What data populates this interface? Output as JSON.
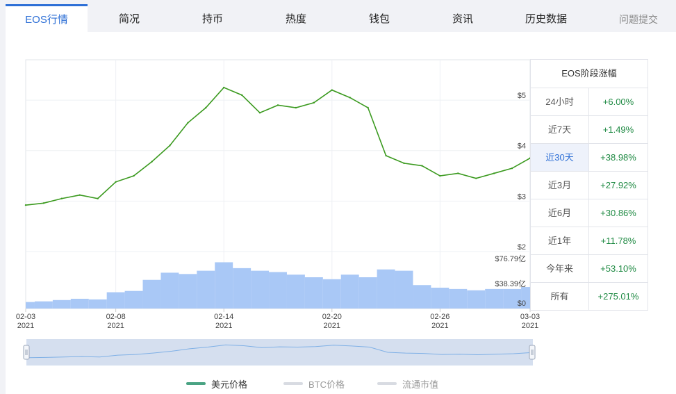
{
  "tabs": [
    {
      "label": "EOS行情",
      "active": true
    },
    {
      "label": "简况"
    },
    {
      "label": "持币"
    },
    {
      "label": "热度"
    },
    {
      "label": "钱包"
    },
    {
      "label": "资讯"
    },
    {
      "label": "历史数据"
    }
  ],
  "feedback_label": "问题提交",
  "performance": {
    "title": "EOS阶段涨幅",
    "rows": [
      {
        "period": "24小时",
        "change": "+6.00%"
      },
      {
        "period": "近7天",
        "change": "+1.49%"
      },
      {
        "period": "近30天",
        "change": "+38.98%",
        "active": true
      },
      {
        "period": "近3月",
        "change": "+27.92%"
      },
      {
        "period": "近6月",
        "change": "+30.86%"
      },
      {
        "period": "近1年",
        "change": "+11.78%"
      },
      {
        "period": "今年来",
        "change": "+53.10%"
      },
      {
        "period": "所有",
        "change": "+275.01%"
      }
    ]
  },
  "legend": [
    {
      "label": "美元价格",
      "color": "#4aa383",
      "active": true
    },
    {
      "label": "BTC价格",
      "color": "#d8dbe2",
      "active": false
    },
    {
      "label": "流通市值",
      "color": "#d8dbe2",
      "active": false
    }
  ],
  "colors": {
    "accent": "#2d6fd6",
    "price_line": "#3b9a1f",
    "volume_bar": "#a9c8f6",
    "positive": "#1f8a43"
  },
  "chart_data": {
    "type": "line",
    "series": [
      {
        "name": "美元价格",
        "x": [
          "02-03",
          "02-04",
          "02-05",
          "02-06",
          "02-07",
          "02-08",
          "02-09",
          "02-10",
          "02-11",
          "02-12",
          "02-13",
          "02-14",
          "02-15",
          "02-16",
          "02-17",
          "02-18",
          "02-19",
          "02-20",
          "02-21",
          "02-22",
          "02-23",
          "02-24",
          "02-25",
          "02-26",
          "02-27",
          "02-28",
          "03-01",
          "03-02",
          "03-03"
        ],
        "y": [
          2.92,
          2.96,
          3.05,
          3.12,
          3.05,
          3.38,
          3.5,
          3.78,
          4.1,
          4.55,
          4.85,
          5.25,
          5.1,
          4.75,
          4.9,
          4.85,
          4.95,
          5.2,
          5.05,
          4.85,
          3.9,
          3.75,
          3.7,
          3.5,
          3.55,
          3.45,
          3.55,
          3.65,
          3.85
        ]
      }
    ],
    "volume": {
      "name": "流通市值",
      "unit": "亿",
      "values": [
        10,
        11,
        13,
        15,
        14,
        25,
        27,
        44,
        55,
        53,
        58,
        71,
        62,
        58,
        56,
        52,
        48,
        45,
        52,
        48,
        60,
        58,
        36,
        32,
        30,
        28,
        30,
        30,
        33
      ]
    },
    "price_axis": {
      "ticks": [
        "$2",
        "$3",
        "$4",
        "$5"
      ],
      "ylim": [
        2,
        5.8
      ]
    },
    "volume_axis": {
      "ticks": [
        "$0",
        "$38.39亿",
        "$76.79亿"
      ],
      "ylim": [
        0,
        76.79
      ]
    },
    "x_ticks": [
      {
        "date": "02-03",
        "year": "2021"
      },
      {
        "date": "02-08",
        "year": "2021"
      },
      {
        "date": "02-14",
        "year": "2021"
      },
      {
        "date": "02-20",
        "year": "2021"
      },
      {
        "date": "02-26",
        "year": "2021"
      },
      {
        "date": "03-03",
        "year": "2021"
      }
    ]
  }
}
